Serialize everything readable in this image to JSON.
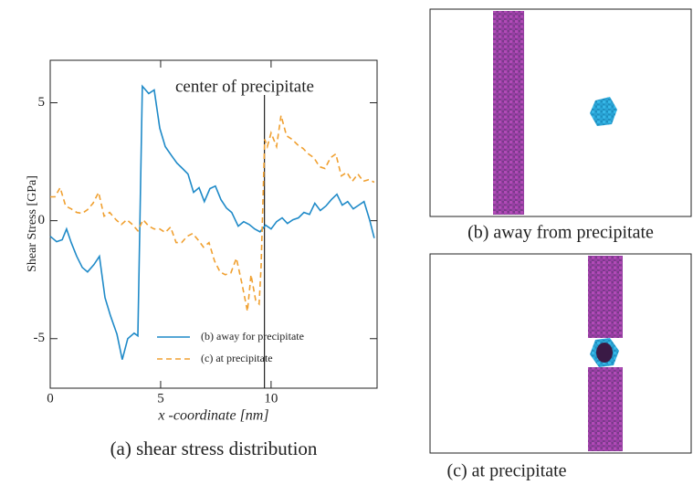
{
  "chart_data": {
    "type": "line",
    "ylabel": "Shear Stress [GPa]",
    "xlabel": "x -coordinate [nm]",
    "caption": "(a) shear stress distribution",
    "annotation": {
      "text": "center of precipitate",
      "x": 9.7
    },
    "xlim": [
      0,
      14.8
    ],
    "ylim": [
      -7.1,
      6.8
    ],
    "xticks": [
      0,
      5,
      10
    ],
    "yticks": [
      -5,
      0,
      5
    ],
    "legend": "lower right",
    "series": [
      {
        "name": "(b) away for precipitate",
        "color": "#1f8ac8",
        "dash": "solid",
        "x": [
          0,
          0.29,
          0.54,
          0.74,
          0.95,
          1.2,
          1.45,
          1.69,
          1.98,
          2.23,
          2.48,
          2.73,
          3.02,
          3.26,
          3.51,
          3.8,
          3.97,
          4.17,
          4.46,
          4.71,
          4.96,
          5.21,
          5.5,
          5.74,
          5.99,
          6.24,
          6.49,
          6.74,
          6.98,
          7.23,
          7.48,
          7.73,
          7.98,
          8.22,
          8.51,
          8.76,
          9.01,
          9.26,
          9.5,
          9.75,
          10,
          10.25,
          10.5,
          10.74,
          10.99,
          11.24,
          11.49,
          11.74,
          11.98,
          12.23,
          12.48,
          12.73,
          12.98,
          13.22,
          13.47,
          13.72,
          13.97,
          14.21,
          14.46,
          14.67
        ],
        "values": [
          -0.66,
          -0.89,
          -0.81,
          -0.35,
          -0.93,
          -1.51,
          -1.98,
          -2.17,
          -1.86,
          -1.51,
          -3.26,
          -4.03,
          -4.81,
          -5.89,
          -5.0,
          -4.77,
          -4.88,
          5.7,
          5.39,
          5.54,
          3.92,
          3.14,
          2.75,
          2.44,
          2.21,
          1.98,
          1.2,
          1.4,
          0.81,
          1.36,
          1.47,
          0.89,
          0.54,
          0.35,
          -0.23,
          -0.04,
          -0.16,
          -0.35,
          -0.47,
          -0.19,
          -0.35,
          -0.04,
          0.12,
          -0.12,
          0.04,
          0.12,
          0.35,
          0.27,
          0.74,
          0.43,
          0.62,
          0.89,
          1.12,
          0.66,
          0.81,
          0.5,
          0.66,
          0.81,
          0.04,
          -0.74
        ]
      },
      {
        "name": "(c) at precipitate",
        "color": "#f0a030",
        "dash": "dashed",
        "x": [
          0,
          0.21,
          0.45,
          0.7,
          0.95,
          1.2,
          1.45,
          1.69,
          1.94,
          2.19,
          2.44,
          2.69,
          2.98,
          3.22,
          3.47,
          3.72,
          3.97,
          4.21,
          4.46,
          4.71,
          4.96,
          5.21,
          5.45,
          5.7,
          5.95,
          6.2,
          6.45,
          6.69,
          6.94,
          7.19,
          7.44,
          7.69,
          7.93,
          8.18,
          8.43,
          8.68,
          8.93,
          9.09,
          9.3,
          9.46,
          9.55,
          9.71,
          9.83,
          10,
          10.25,
          10.45,
          10.7,
          10.95,
          11.2,
          11.45,
          11.69,
          11.94,
          12.19,
          12.44,
          12.69,
          12.93,
          13.18,
          13.43,
          13.68,
          13.93,
          14.17,
          14.42,
          14.67
        ],
        "values": [
          1.01,
          1.01,
          1.4,
          0.62,
          0.5,
          0.35,
          0.31,
          0.47,
          0.74,
          1.2,
          0.19,
          0.35,
          0.04,
          -0.16,
          0.04,
          -0.16,
          -0.43,
          0.04,
          -0.23,
          -0.35,
          -0.35,
          -0.5,
          -0.27,
          -0.93,
          -0.93,
          -0.66,
          -0.54,
          -0.81,
          -1.12,
          -0.93,
          -1.71,
          -2.17,
          -2.29,
          -2.21,
          -1.59,
          -2.67,
          -3.84,
          -2.29,
          -3.37,
          -3.53,
          -1.9,
          3.45,
          3.14,
          3.72,
          3.14,
          4.46,
          3.6,
          3.45,
          3.22,
          3.06,
          2.83,
          2.67,
          2.29,
          2.21,
          2.67,
          2.83,
          1.9,
          2.05,
          1.67,
          1.98,
          1.67,
          1.74,
          1.63
        ]
      }
    ]
  },
  "panels": [
    {
      "caption": "(b) away from precipitate"
    },
    {
      "caption": "(c) at precipitate"
    }
  ]
}
